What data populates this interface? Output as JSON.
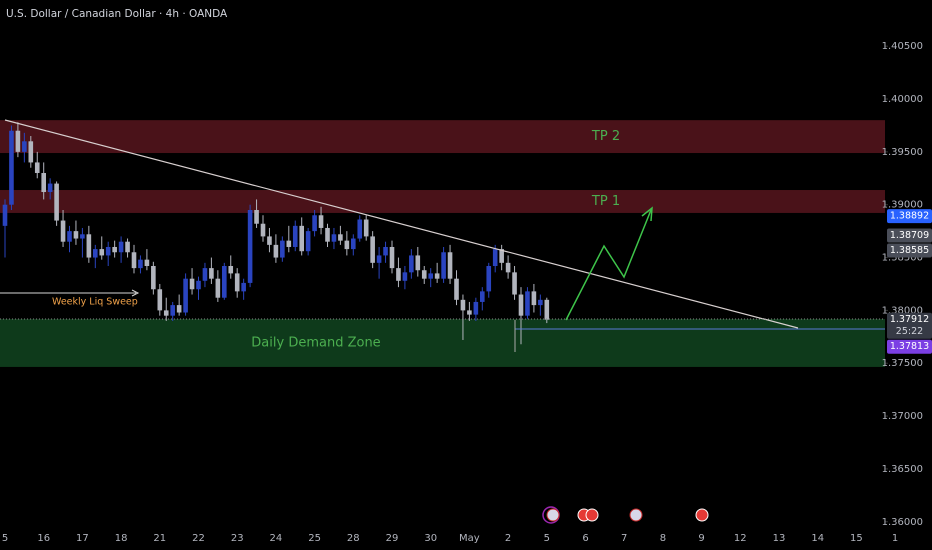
{
  "chart_data": {
    "type": "candlestick",
    "title": "U.S. Dollar / Canadian Dollar · 4h · OANDA",
    "up_color": "#2a44c0",
    "down_color": "#b2b5be",
    "ylim": [
      1.35922,
      1.40937
    ],
    "yticks": [
      {
        "value": 1.36,
        "label": "1.36000"
      },
      {
        "value": 1.365,
        "label": "1.36500"
      },
      {
        "value": 1.37,
        "label": "1.37000"
      },
      {
        "value": 1.375,
        "label": "1.37500"
      },
      {
        "value": 1.38,
        "label": "1.38000"
      },
      {
        "value": 1.385,
        "label": "1.38500"
      },
      {
        "value": 1.39,
        "label": "1.39000"
      },
      {
        "value": 1.395,
        "label": "1.39500"
      },
      {
        "value": 1.4,
        "label": "1.40000"
      },
      {
        "value": 1.405,
        "label": "1.40500"
      }
    ],
    "xtick_labels": [
      "5",
      "16",
      "17",
      "18",
      "21",
      "22",
      "23",
      "24",
      "25",
      "28",
      "29",
      "30",
      "May",
      "2",
      "5",
      "6",
      "7",
      "8",
      "9",
      "12",
      "13",
      "14",
      "15",
      "1"
    ],
    "ohlc": [
      [
        1.388,
        1.3905,
        1.385,
        1.39
      ],
      [
        1.39,
        1.3975,
        1.3895,
        1.397
      ],
      [
        1.397,
        1.3978,
        1.3945,
        1.395
      ],
      [
        1.395,
        1.3968,
        1.394,
        1.396
      ],
      [
        1.396,
        1.3965,
        1.3935,
        1.394
      ],
      [
        1.394,
        1.395,
        1.3925,
        1.393
      ],
      [
        1.393,
        1.394,
        1.3905,
        1.3912
      ],
      [
        1.3912,
        1.3925,
        1.3905,
        1.392
      ],
      [
        1.392,
        1.3922,
        1.388,
        1.3885
      ],
      [
        1.3885,
        1.3895,
        1.386,
        1.3865
      ],
      [
        1.3865,
        1.388,
        1.3855,
        1.3875
      ],
      [
        1.3875,
        1.3885,
        1.3862,
        1.3868
      ],
      [
        1.3868,
        1.3878,
        1.385,
        1.3872
      ],
      [
        1.3872,
        1.388,
        1.3845,
        1.385
      ],
      [
        1.385,
        1.3862,
        1.384,
        1.3858
      ],
      [
        1.3858,
        1.387,
        1.3848,
        1.3852
      ],
      [
        1.3852,
        1.3865,
        1.3842,
        1.386
      ],
      [
        1.386,
        1.3866,
        1.385,
        1.3855
      ],
      [
        1.3855,
        1.387,
        1.3845,
        1.3865
      ],
      [
        1.3865,
        1.3868,
        1.385,
        1.3855
      ],
      [
        1.3855,
        1.3862,
        1.3835,
        1.384
      ],
      [
        1.384,
        1.3852,
        1.3835,
        1.3848
      ],
      [
        1.3848,
        1.3858,
        1.3838,
        1.3842
      ],
      [
        1.3842,
        1.3846,
        1.3815,
        1.382
      ],
      [
        1.382,
        1.3825,
        1.3795,
        1.38
      ],
      [
        1.38,
        1.3812,
        1.379,
        1.3795
      ],
      [
        1.3795,
        1.3808,
        1.379,
        1.3805
      ],
      [
        1.3805,
        1.3815,
        1.3795,
        1.3798
      ],
      [
        1.3798,
        1.3835,
        1.3795,
        1.383
      ],
      [
        1.383,
        1.384,
        1.3815,
        1.382
      ],
      [
        1.382,
        1.3832,
        1.381,
        1.3828
      ],
      [
        1.3828,
        1.3845,
        1.3822,
        1.384
      ],
      [
        1.384,
        1.385,
        1.3825,
        1.383
      ],
      [
        1.383,
        1.3838,
        1.3808,
        1.3812
      ],
      [
        1.3812,
        1.3845,
        1.381,
        1.3842
      ],
      [
        1.3842,
        1.3852,
        1.383,
        1.3835
      ],
      [
        1.3835,
        1.384,
        1.3812,
        1.3818
      ],
      [
        1.3818,
        1.383,
        1.381,
        1.3826
      ],
      [
        1.3826,
        1.39,
        1.3822,
        1.3895
      ],
      [
        1.3895,
        1.3905,
        1.3878,
        1.3882
      ],
      [
        1.3882,
        1.389,
        1.3865,
        1.387
      ],
      [
        1.387,
        1.3878,
        1.3855,
        1.3862
      ],
      [
        1.3862,
        1.3872,
        1.3845,
        1.385
      ],
      [
        1.385,
        1.387,
        1.3846,
        1.3866
      ],
      [
        1.3866,
        1.388,
        1.3855,
        1.386
      ],
      [
        1.386,
        1.3885,
        1.3856,
        1.388
      ],
      [
        1.388,
        1.3888,
        1.3852,
        1.3856
      ],
      [
        1.3856,
        1.3878,
        1.3852,
        1.3875
      ],
      [
        1.3875,
        1.3895,
        1.387,
        1.389
      ],
      [
        1.389,
        1.3898,
        1.3872,
        1.3878
      ],
      [
        1.3878,
        1.3882,
        1.386,
        1.3865
      ],
      [
        1.3865,
        1.3878,
        1.3858,
        1.3872
      ],
      [
        1.3872,
        1.388,
        1.3862,
        1.3866
      ],
      [
        1.3866,
        1.3875,
        1.3852,
        1.3858
      ],
      [
        1.3858,
        1.3872,
        1.3852,
        1.3868
      ],
      [
        1.3868,
        1.389,
        1.3865,
        1.3886
      ],
      [
        1.3886,
        1.389,
        1.3866,
        1.387
      ],
      [
        1.387,
        1.3875,
        1.384,
        1.3845
      ],
      [
        1.3845,
        1.386,
        1.383,
        1.3852
      ],
      [
        1.3852,
        1.3865,
        1.3845,
        1.386
      ],
      [
        1.386,
        1.3866,
        1.3835,
        1.384
      ],
      [
        1.384,
        1.385,
        1.3822,
        1.3828
      ],
      [
        1.3828,
        1.3842,
        1.382,
        1.3836
      ],
      [
        1.3836,
        1.3858,
        1.383,
        1.3852
      ],
      [
        1.3852,
        1.386,
        1.3832,
        1.3838
      ],
      [
        1.3838,
        1.3842,
        1.3825,
        1.383
      ],
      [
        1.383,
        1.384,
        1.3822,
        1.3835
      ],
      [
        1.3835,
        1.3845,
        1.3826,
        1.383
      ],
      [
        1.383,
        1.386,
        1.3826,
        1.3855
      ],
      [
        1.3855,
        1.3862,
        1.3825,
        1.383
      ],
      [
        1.383,
        1.3838,
        1.3805,
        1.381
      ],
      [
        1.381,
        1.3815,
        1.3772,
        1.38
      ],
      [
        1.38,
        1.3808,
        1.379,
        1.3796
      ],
      [
        1.3796,
        1.3812,
        1.379,
        1.3808
      ],
      [
        1.3808,
        1.3822,
        1.38,
        1.3818
      ],
      [
        1.3818,
        1.3845,
        1.3812,
        1.3842
      ],
      [
        1.3842,
        1.3862,
        1.3836,
        1.3858
      ],
      [
        1.3858,
        1.3862,
        1.3838,
        1.3845
      ],
      [
        1.3845,
        1.3852,
        1.383,
        1.3836
      ],
      [
        1.3836,
        1.3842,
        1.381,
        1.3815
      ],
      [
        1.3815,
        1.3822,
        1.3768,
        1.3795
      ],
      [
        1.3795,
        1.3822,
        1.3792,
        1.3818
      ],
      [
        1.3818,
        1.3825,
        1.3798,
        1.3805
      ],
      [
        1.3805,
        1.3815,
        1.3795,
        1.381
      ],
      [
        1.381,
        1.3812,
        1.3788,
        1.37912
      ]
    ],
    "zones": [
      {
        "label": "Daily Demand Zone",
        "range": [
          1.37465,
          1.37919
        ],
        "color": "#0e3a1b"
      },
      {
        "label": "TP 1",
        "range": [
          1.38922,
          1.39139
        ],
        "color": "#4a1219"
      },
      {
        "label": "TP 2",
        "range": [
          1.39489,
          1.398
        ],
        "color": "#4a1219"
      }
    ],
    "annotation": "Weekly Liq Sweep",
    "price_tags": [
      {
        "value": 1.38892,
        "label": "1.38892",
        "color": "#2962ff"
      },
      {
        "value": 1.38709,
        "label": "1.38709",
        "color": "#4a4e59"
      },
      {
        "value": 1.38585,
        "label": "1.38585",
        "color": "#4a4e59"
      },
      {
        "value": 1.37912,
        "label": "1.37912",
        "color": "#363a45"
      },
      {
        "value": 1.37813,
        "label": "1.37813",
        "color": "#7b3fe4"
      }
    ],
    "countdown": "25:22"
  }
}
